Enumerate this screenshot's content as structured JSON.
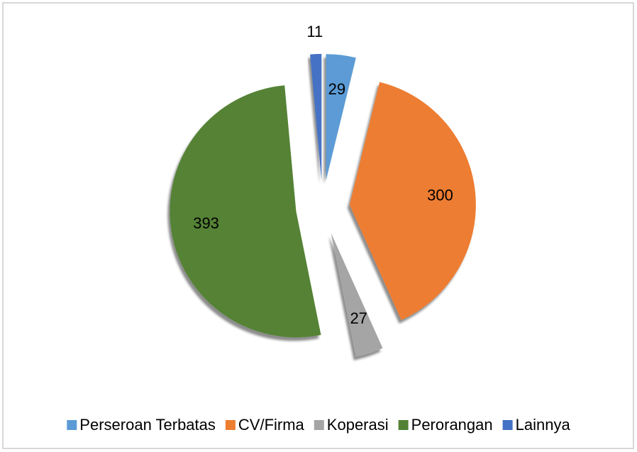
{
  "chart_data": {
    "type": "pie",
    "categories": [
      "Perseroan Terbatas",
      "CV/Firma",
      "Koperasi",
      "Perorangan",
      "Lainnya"
    ],
    "values": [
      29,
      300,
      27,
      393,
      11
    ],
    "colors": [
      "#5b9bd5",
      "#ed7d31",
      "#a5a5a5",
      "#548235",
      "#4472c4"
    ],
    "legend": "bottom"
  }
}
